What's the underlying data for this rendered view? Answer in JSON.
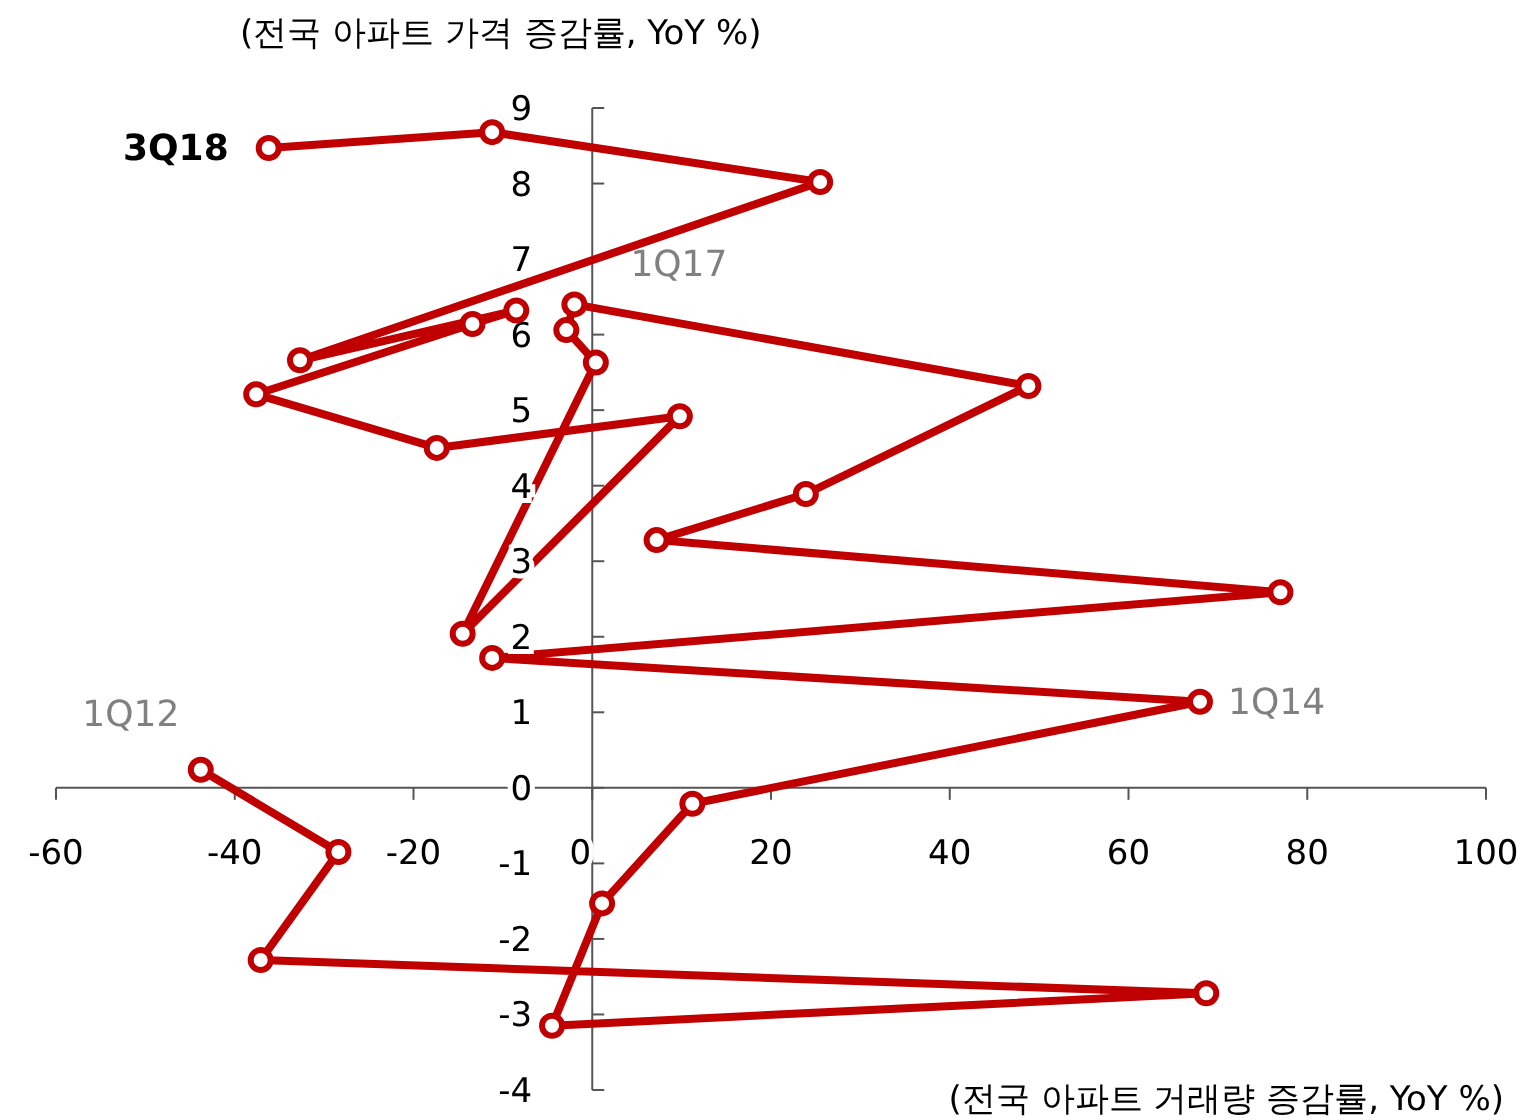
{
  "chart_data": {
    "type": "line",
    "xlabel": "(전국 아파트 거래량 증감률, YoY %)",
    "ylabel": "(전국 아파트 가격 증감률, YoY %)",
    "x": [
      -43.8,
      -28.4,
      -37.1,
      68.7,
      -4.5,
      1.1,
      11.2,
      68.0,
      -11.2,
      77.0,
      7.2,
      23.9,
      48.8,
      -2.0,
      -2.9,
      0.4,
      -14.5,
      9.8,
      -17.4,
      -37.6,
      -13.4,
      -8.5,
      -32.7,
      25.5,
      -11.2,
      -36.2
    ],
    "values": [
      0.24,
      -0.85,
      -2.28,
      -2.72,
      -3.15,
      -1.53,
      -0.21,
      1.14,
      1.72,
      2.59,
      3.28,
      3.89,
      5.32,
      6.4,
      6.06,
      5.63,
      2.04,
      4.92,
      4.5,
      5.21,
      6.14,
      6.32,
      5.66,
      8.02,
      8.68,
      8.47
    ],
    "color": "#c00000",
    "marker": "circle",
    "line_style": "solid",
    "xlim": [
      -60,
      100
    ],
    "ylim": [
      -4,
      9
    ],
    "xticks": [
      -60,
      -40,
      -20,
      0,
      20,
      40,
      60,
      80,
      100
    ],
    "yticks": [
      -4,
      -3,
      -2,
      -1,
      0,
      1,
      2,
      3,
      4,
      5,
      6,
      7,
      8,
      9
    ],
    "annotations": [
      {
        "text": "1Q12",
        "x": -43.8,
        "y": 0.24
      },
      {
        "text": "1Q14",
        "x": 68.0,
        "y": 1.14
      },
      {
        "text": "1Q17",
        "x": -2.0,
        "y": 6.4
      },
      {
        "text": "3Q18",
        "x": -36.2,
        "y": 8.47
      }
    ]
  }
}
